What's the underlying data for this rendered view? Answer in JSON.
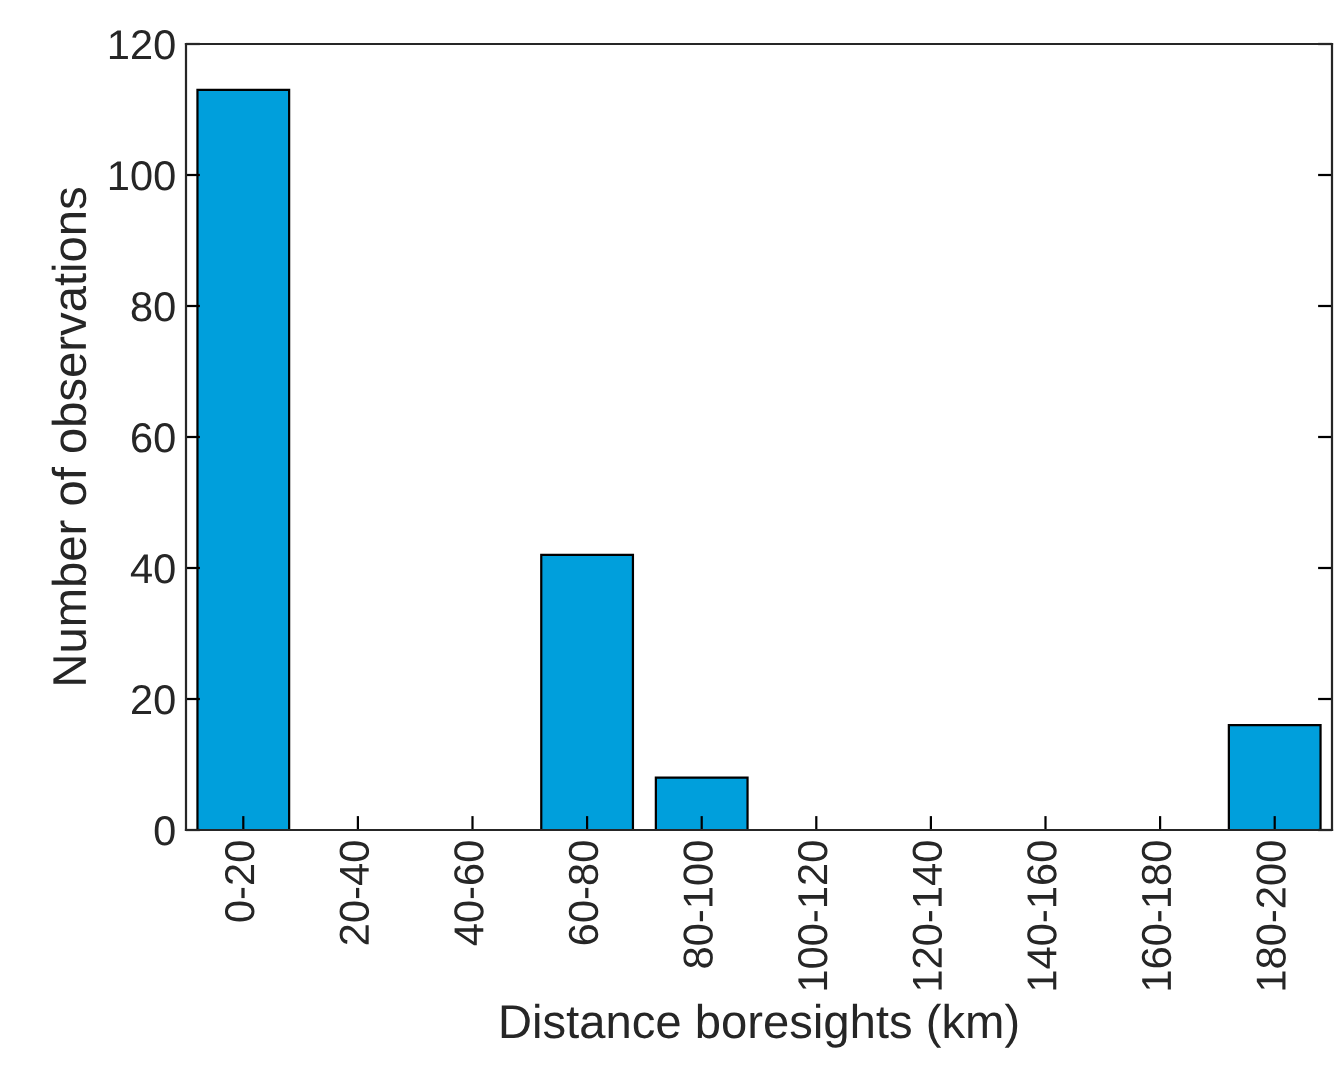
{
  "chart_data": {
    "type": "bar",
    "xlabel": "Distance boresights (km)",
    "ylabel": "Number of observations",
    "categories": [
      "0-20",
      "20-40",
      "40-60",
      "60-80",
      "80-100",
      "100-120",
      "120-140",
      "140-160",
      "160-180",
      "180-200"
    ],
    "values": [
      113,
      0,
      0,
      42,
      8,
      0,
      0,
      0,
      0,
      16
    ],
    "color": "#009fdc",
    "ylim": [
      0,
      120
    ],
    "yticks": [
      0,
      20,
      40,
      60,
      80,
      100,
      120
    ],
    "grid": false
  }
}
